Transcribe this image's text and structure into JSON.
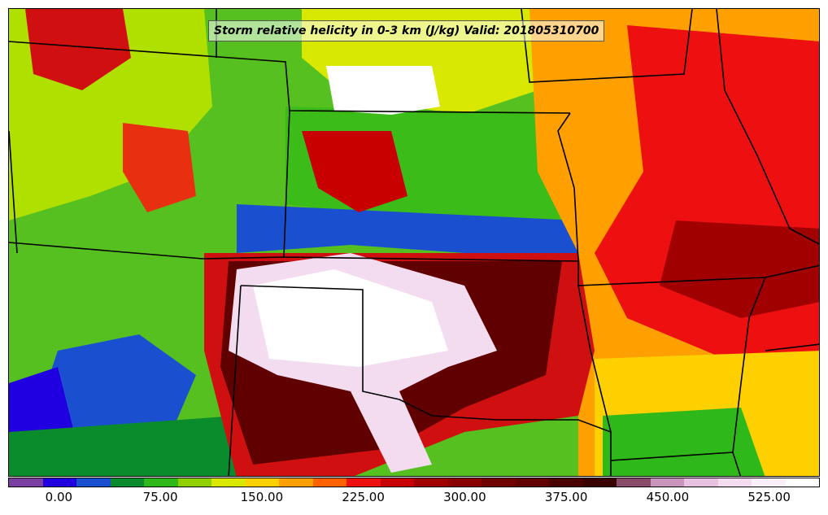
{
  "title": "Storm relative helicity in 0-3 km (J/kg) Valid: 201805310700",
  "map": {
    "region": "Central United States",
    "field": "storm relative helicity 0-3 km",
    "boundaries": "state lines"
  },
  "colorbar": {
    "min": -37.5,
    "max": 562.5,
    "colors": [
      "#7a3fa0",
      "#2000e0",
      "#1a50d0",
      "#0a8c2c",
      "#2fb81a",
      "#90d000",
      "#d8e800",
      "#ffd000",
      "#ffa000",
      "#ff6000",
      "#ee1010",
      "#c80000",
      "#a00000",
      "#880000",
      "#700000",
      "#600000",
      "#4a0000",
      "#3a0000",
      "#8a4a6a",
      "#c894bc",
      "#e8c0e0",
      "#f4dcf0",
      "#fbeffa",
      "#ffffff"
    ],
    "tick_labels": [
      "0.00",
      "75.00",
      "150.00",
      "225.00",
      "300.00",
      "375.00",
      "450.00",
      "525.00"
    ],
    "tick_values": [
      0,
      75,
      150,
      225,
      300,
      375,
      450,
      525
    ]
  }
}
